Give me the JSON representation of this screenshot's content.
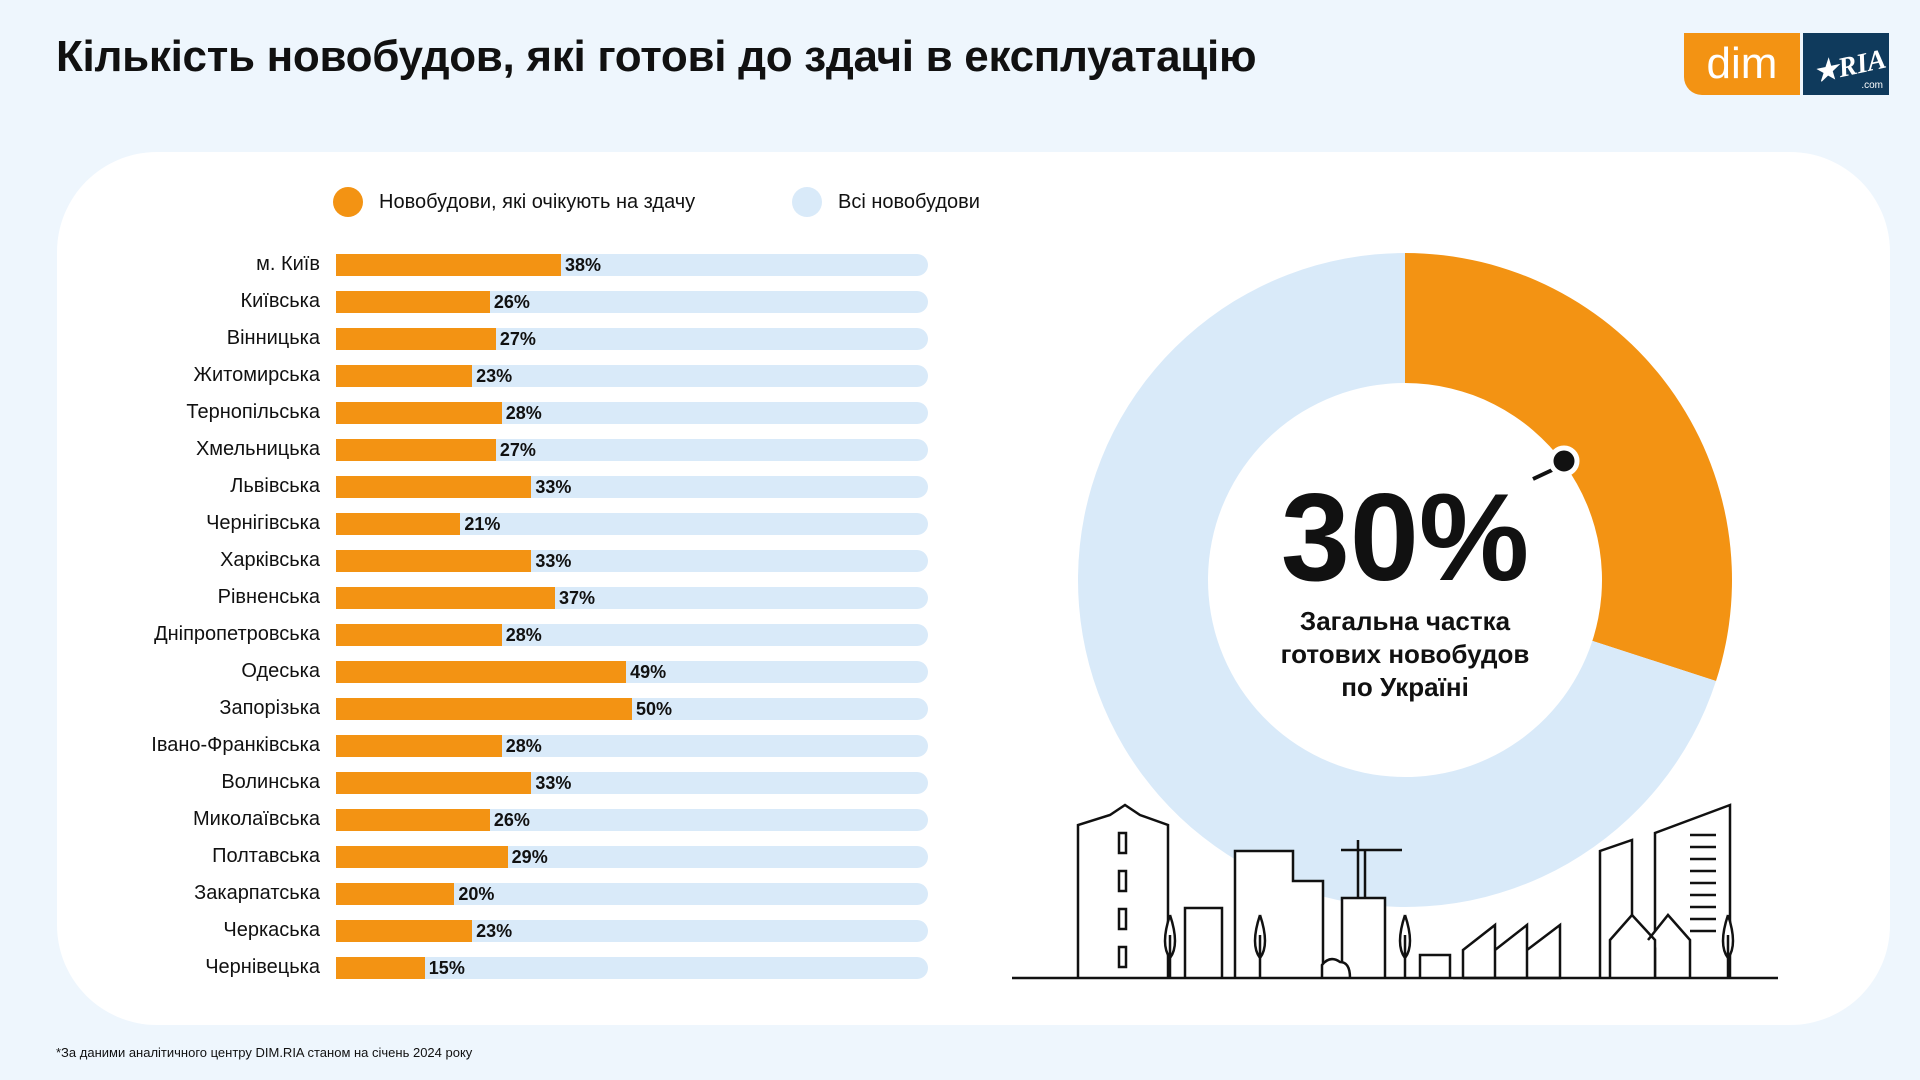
{
  "title": "Кількість новобудов, які готові до здачі в експлуатацію",
  "logo": {
    "dim": "dim",
    "ria": "RIA",
    ".com": ".com"
  },
  "colors": {
    "accent": "#F39313",
    "total": "#D9EAF9",
    "background": "#EEF6FD",
    "logo_dark": "#0F3A5C"
  },
  "chart_data": [
    {
      "type": "bar",
      "orientation": "horizontal",
      "unit": "%",
      "xlim": [
        0,
        100
      ],
      "legend": [
        {
          "name": "Новобудови, які очікують на здачу",
          "color": "#F39313"
        },
        {
          "name": "Всі новобудови",
          "color": "#D9EAF9"
        }
      ],
      "legend_placement": "top",
      "categories": [
        "м. Київ",
        "Київська",
        "Вінницька",
        "Житомирська",
        "Тернопільська",
        "Хмельницька",
        "Львівська",
        "Чернігівська",
        "Харківська",
        "Рівненська",
        "Дніпропетровська",
        "Одеська",
        "Запорізька",
        "Івано-Франківська",
        "Волинська",
        "Миколаївська",
        "Полтавська",
        "Закарпатська",
        "Черкаська",
        "Чернівецька"
      ],
      "values": [
        38,
        26,
        27,
        23,
        28,
        27,
        33,
        21,
        33,
        37,
        28,
        49,
        50,
        28,
        33,
        26,
        29,
        20,
        23,
        15
      ],
      "labels": [
        "38%",
        "26%",
        "27%",
        "23%",
        "28%",
        "27%",
        "33%",
        "21%",
        "33%",
        "37%",
        "28%",
        "49%",
        "50%",
        "28%",
        "33%",
        "26%",
        "29%",
        "20%",
        "23%",
        "15%"
      ]
    },
    {
      "type": "pie",
      "donut": true,
      "values": [
        30,
        70
      ],
      "colors": [
        "#F39313",
        "#D9EAF9"
      ],
      "center_value": "30%",
      "center_lines": [
        "Загальна частка",
        "готових новобудов",
        "по Україні"
      ]
    }
  ],
  "footnote": "*За даними аналітичного центру DIM.RIA станом на січень 2024 року"
}
